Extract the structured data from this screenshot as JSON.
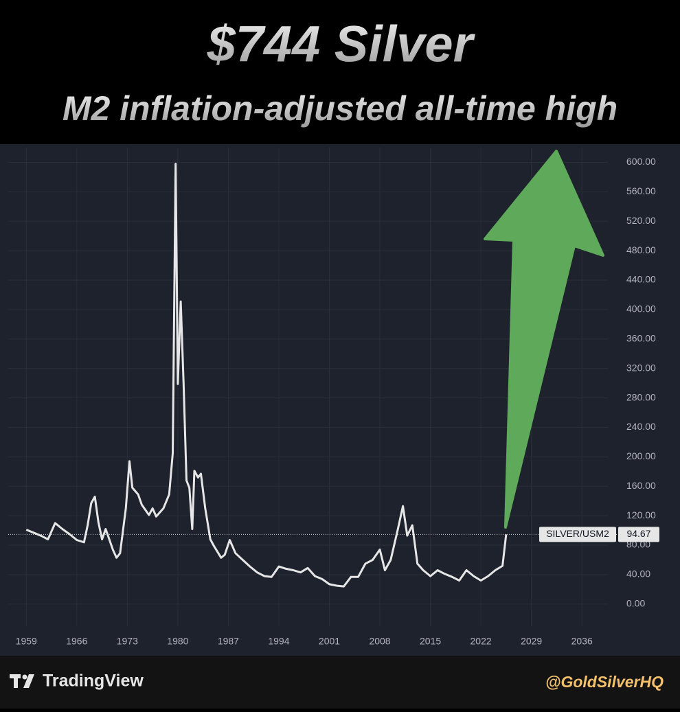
{
  "chart_data": {
    "type": "line",
    "title": "$744 Silver",
    "subtitle": "M2 inflation-adjusted all-time high",
    "x": [
      1959,
      1960,
      1961,
      1962,
      1963,
      1964,
      1965,
      1966,
      1967,
      1967.5,
      1968,
      1968.5,
      1969,
      1969.5,
      1970,
      1970.5,
      1971,
      1971.5,
      1972,
      1972.8,
      1973.3,
      1973.7,
      1974.5,
      1975,
      1976,
      1976.5,
      1977,
      1978,
      1978.8,
      1979.3,
      1979.7,
      1980,
      1980.4,
      1980.8,
      1981.2,
      1981.6,
      1982,
      1982.3,
      1982.8,
      1983.2,
      1983.8,
      1984.5,
      1985,
      1986,
      1986.5,
      1987.2,
      1988,
      1989,
      1990,
      1991,
      1992,
      1993,
      1994,
      1995,
      1996,
      1997,
      1998,
      1999,
      2000,
      2001,
      2002,
      2003,
      2004,
      2005,
      2006,
      2007,
      2008,
      2008.7,
      2009.5,
      2010.5,
      2011.2,
      2011.8,
      2012.5,
      2013.2,
      2014,
      2015,
      2016,
      2017,
      2018,
      2019,
      2020,
      2021,
      2022,
      2023,
      2024,
      2025,
      2025.5
    ],
    "series": [
      {
        "name": "SILVER/USM2",
        "color": "#e6e6e6",
        "values": [
          101,
          97,
          93,
          88,
          110,
          102,
          95,
          87,
          84,
          107,
          137,
          146,
          111,
          88,
          102,
          88,
          74,
          63,
          69,
          130,
          194,
          158,
          149,
          135,
          121,
          130,
          119,
          130,
          149,
          205,
          598,
          299,
          411,
          299,
          168,
          158,
          102,
          181,
          172,
          177,
          130,
          88,
          79,
          63,
          67,
          87,
          69,
          60,
          51,
          43,
          38,
          37,
          51,
          48,
          46,
          43,
          49,
          38,
          34,
          27,
          25,
          24,
          37,
          37,
          55,
          60,
          74,
          46,
          60,
          102,
          133,
          93,
          107,
          55,
          46,
          38,
          46,
          41,
          37,
          32,
          46,
          38,
          32,
          38,
          46,
          52,
          94.67
        ]
      }
    ],
    "xlim": [
      1956.5,
      2039.6
    ],
    "xticks": [
      1959,
      1966,
      1973,
      1980,
      1987,
      1994,
      2001,
      2008,
      2015,
      2022,
      2029,
      2036
    ],
    "ylim": [
      -30,
      620
    ],
    "yticks": [
      {
        "value": 0,
        "label": "0.00"
      },
      {
        "value": 40,
        "label": "40.00"
      },
      {
        "value": 80,
        "label": "80.00"
      },
      {
        "value": 120,
        "label": "120.00"
      },
      {
        "value": 160,
        "label": "160.00"
      },
      {
        "value": 200,
        "label": "200.00"
      },
      {
        "value": 240,
        "label": "240.00"
      },
      {
        "value": 280,
        "label": "280.00"
      },
      {
        "value": 320,
        "label": "320.00"
      },
      {
        "value": 360,
        "label": "360.00"
      },
      {
        "value": 400,
        "label": "400.00"
      },
      {
        "value": 440,
        "label": "440.00"
      },
      {
        "value": 480,
        "label": "480.00"
      },
      {
        "value": 520,
        "label": "520.00"
      },
      {
        "value": 560,
        "label": "560.00"
      },
      {
        "value": 600,
        "label": "600.00"
      }
    ],
    "grid": true
  },
  "footer": {
    "brand": "TradingView",
    "handle": "@GoldSilverHQ"
  }
}
